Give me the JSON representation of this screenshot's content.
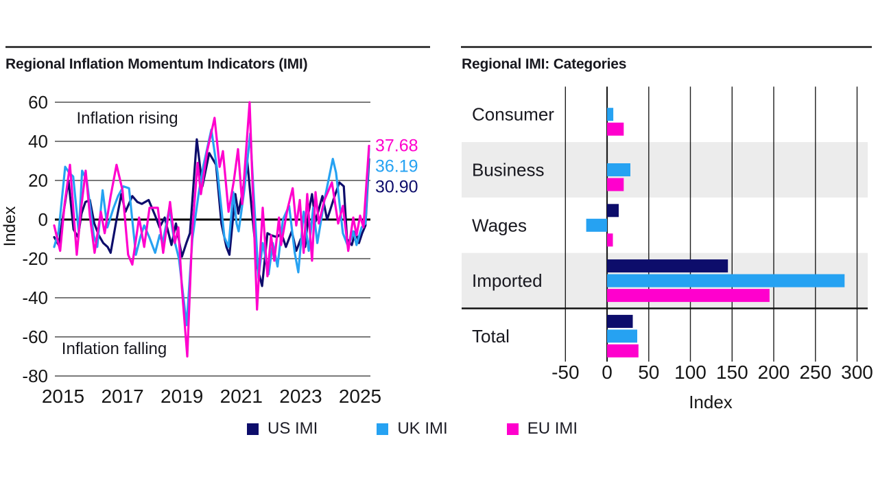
{
  "legend": {
    "items": [
      {
        "label": "US IMI",
        "color": "#0d0d6b"
      },
      {
        "label": "UK IMI",
        "color": "#26a2f2"
      },
      {
        "label": "EU IMI",
        "color": "#ff00cd"
      }
    ]
  },
  "chart_data": [
    {
      "type": "line",
      "title": "Regional Inflation Momentum Indicators (IMI)",
      "ylabel": "Index",
      "xlabel": "",
      "xlim": [
        2014.6,
        2025.5
      ],
      "ylim": [
        -80,
        60
      ],
      "yticks": [
        60,
        40,
        20,
        0,
        -20,
        -40,
        -60,
        -80
      ],
      "xticks": [
        2015,
        2017,
        2019,
        2021,
        2023,
        2025
      ],
      "grid": "horizontal",
      "zero_line": true,
      "legend_position": "bottom",
      "annotations": [
        {
          "text": "Inflation rising",
          "x": 2015.45,
          "y": 52
        },
        {
          "text": "Inflation falling",
          "x": 2014.95,
          "y": -66
        }
      ],
      "series": [
        {
          "name": "US IMI",
          "color": "#0d0d6b",
          "end_label": "30.90",
          "points": [
            [
              2014.7,
              -9
            ],
            [
              2014.85,
              -13
            ],
            [
              2015.0,
              2
            ],
            [
              2015.18,
              20
            ],
            [
              2015.35,
              -5
            ],
            [
              2015.5,
              -9
            ],
            [
              2015.62,
              3
            ],
            [
              2015.75,
              9
            ],
            [
              2015.9,
              10
            ],
            [
              2016.05,
              -2
            ],
            [
              2016.2,
              -8
            ],
            [
              2016.35,
              -12
            ],
            [
              2016.5,
              -14
            ],
            [
              2016.6,
              -17
            ],
            [
              2016.8,
              0
            ],
            [
              2016.96,
              13
            ],
            [
              2017.1,
              4
            ],
            [
              2017.33,
              12
            ],
            [
              2017.5,
              9
            ],
            [
              2017.65,
              8
            ],
            [
              2017.88,
              10
            ],
            [
              2018.1,
              2
            ],
            [
              2018.25,
              -4
            ],
            [
              2018.42,
              1
            ],
            [
              2018.65,
              -13
            ],
            [
              2018.8,
              -2
            ],
            [
              2019.0,
              -19
            ],
            [
              2019.15,
              -12
            ],
            [
              2019.27,
              -7
            ],
            [
              2019.5,
              41
            ],
            [
              2019.69,
              17
            ],
            [
              2019.92,
              34
            ],
            [
              2020.15,
              28
            ],
            [
              2020.33,
              -2
            ],
            [
              2020.5,
              -14
            ],
            [
              2020.6,
              -18
            ],
            [
              2020.8,
              13
            ],
            [
              2020.9,
              3
            ],
            [
              2021.05,
              15
            ],
            [
              2021.2,
              30
            ],
            [
              2021.35,
              5
            ],
            [
              2021.55,
              -25
            ],
            [
              2021.7,
              -34
            ],
            [
              2021.88,
              -7
            ],
            [
              2022.0,
              -8
            ],
            [
              2022.2,
              -9
            ],
            [
              2022.35,
              -7
            ],
            [
              2022.5,
              -14
            ],
            [
              2022.7,
              -6
            ],
            [
              2022.85,
              -16
            ],
            [
              2023.0,
              -10
            ],
            [
              2023.15,
              -14
            ],
            [
              2023.27,
              4
            ],
            [
              2023.38,
              13
            ],
            [
              2023.5,
              -1
            ],
            [
              2023.73,
              12
            ],
            [
              2023.89,
              0
            ],
            [
              2024.1,
              10
            ],
            [
              2024.3,
              19
            ],
            [
              2024.45,
              17
            ],
            [
              2024.56,
              -10
            ],
            [
              2024.72,
              -13
            ],
            [
              2024.84,
              -6
            ],
            [
              2024.96,
              -12
            ],
            [
              2025.07,
              -7
            ],
            [
              2025.18,
              -3
            ],
            [
              2025.3,
              30.9
            ]
          ]
        },
        {
          "name": "UK IMI",
          "color": "#26a2f2",
          "end_label": "36.19",
          "points": [
            [
              2014.7,
              -14
            ],
            [
              2014.85,
              -6
            ],
            [
              2015.07,
              27
            ],
            [
              2015.2,
              24
            ],
            [
              2015.34,
              22
            ],
            [
              2015.53,
              -7
            ],
            [
              2015.64,
              25
            ],
            [
              2015.8,
              20
            ],
            [
              2016.03,
              -8
            ],
            [
              2016.15,
              -14
            ],
            [
              2016.33,
              15
            ],
            [
              2016.49,
              -4
            ],
            [
              2016.7,
              6
            ],
            [
              2016.85,
              12
            ],
            [
              2017.03,
              17
            ],
            [
              2017.22,
              16
            ],
            [
              2017.45,
              -18
            ],
            [
              2017.6,
              -9
            ],
            [
              2017.73,
              -3
            ],
            [
              2017.9,
              -9
            ],
            [
              2018.1,
              -17
            ],
            [
              2018.25,
              -8
            ],
            [
              2018.35,
              -12
            ],
            [
              2018.58,
              6
            ],
            [
              2018.72,
              -9
            ],
            [
              2018.9,
              -20
            ],
            [
              2019.16,
              -54
            ],
            [
              2019.35,
              -10
            ],
            [
              2019.57,
              14
            ],
            [
              2019.73,
              28
            ],
            [
              2019.99,
              46
            ],
            [
              2020.2,
              24
            ],
            [
              2020.43,
              -9
            ],
            [
              2020.57,
              -14
            ],
            [
              2020.73,
              14
            ],
            [
              2020.84,
              -2
            ],
            [
              2020.91,
              -6
            ],
            [
              2021.1,
              15
            ],
            [
              2021.3,
              44
            ],
            [
              2021.58,
              -30
            ],
            [
              2021.72,
              -12
            ],
            [
              2021.92,
              -28
            ],
            [
              2022.06,
              -12
            ],
            [
              2022.22,
              -24
            ],
            [
              2022.4,
              0
            ],
            [
              2022.61,
              7
            ],
            [
              2022.8,
              -17
            ],
            [
              2022.92,
              -27
            ],
            [
              2023.1,
              4
            ],
            [
              2023.27,
              -16
            ],
            [
              2023.42,
              6
            ],
            [
              2023.56,
              -12
            ],
            [
              2023.8,
              10
            ],
            [
              2024.08,
              31
            ],
            [
              2024.19,
              24
            ],
            [
              2024.42,
              -7
            ],
            [
              2024.6,
              -14
            ],
            [
              2024.77,
              -6
            ],
            [
              2024.88,
              -13
            ],
            [
              2025.05,
              -4
            ],
            [
              2025.18,
              -2
            ],
            [
              2025.3,
              36.19
            ]
          ]
        },
        {
          "name": "EU IMI",
          "color": "#ff00cd",
          "end_label": "37.68",
          "points": [
            [
              2014.7,
              -3
            ],
            [
              2014.9,
              -16
            ],
            [
              2015.05,
              8
            ],
            [
              2015.23,
              28
            ],
            [
              2015.46,
              -18
            ],
            [
              2015.6,
              5
            ],
            [
              2015.76,
              25
            ],
            [
              2015.9,
              2
            ],
            [
              2016.06,
              -17
            ],
            [
              2016.27,
              4
            ],
            [
              2016.4,
              -7
            ],
            [
              2016.6,
              12
            ],
            [
              2016.8,
              28
            ],
            [
              2017.0,
              15
            ],
            [
              2017.19,
              -18
            ],
            [
              2017.33,
              -23
            ],
            [
              2017.56,
              1
            ],
            [
              2017.73,
              -14
            ],
            [
              2017.91,
              6
            ],
            [
              2018.07,
              6
            ],
            [
              2018.19,
              6
            ],
            [
              2018.37,
              -17
            ],
            [
              2018.6,
              9
            ],
            [
              2018.76,
              -12
            ],
            [
              2018.88,
              -4
            ],
            [
              2019.0,
              -35
            ],
            [
              2019.18,
              -70
            ],
            [
              2019.35,
              -5
            ],
            [
              2019.53,
              29
            ],
            [
              2019.64,
              13
            ],
            [
              2019.85,
              35
            ],
            [
              2020.1,
              52
            ],
            [
              2020.27,
              27
            ],
            [
              2020.38,
              35
            ],
            [
              2020.57,
              4
            ],
            [
              2020.75,
              20
            ],
            [
              2020.89,
              36
            ],
            [
              2021.03,
              8
            ],
            [
              2021.28,
              60
            ],
            [
              2021.53,
              -46
            ],
            [
              2021.72,
              6
            ],
            [
              2021.88,
              -29
            ],
            [
              2022.0,
              -8
            ],
            [
              2022.11,
              -21
            ],
            [
              2022.27,
              1
            ],
            [
              2022.34,
              -13
            ],
            [
              2022.55,
              5
            ],
            [
              2022.73,
              16
            ],
            [
              2022.85,
              -3
            ],
            [
              2022.97,
              10
            ],
            [
              2023.1,
              -17
            ],
            [
              2023.22,
              13
            ],
            [
              2023.38,
              -21
            ],
            [
              2023.5,
              14
            ],
            [
              2023.61,
              -2
            ],
            [
              2023.8,
              10
            ],
            [
              2024.05,
              19
            ],
            [
              2024.26,
              -2
            ],
            [
              2024.42,
              7
            ],
            [
              2024.6,
              -16
            ],
            [
              2024.77,
              1
            ],
            [
              2024.88,
              -8
            ],
            [
              2025.0,
              2
            ],
            [
              2025.11,
              -4
            ],
            [
              2025.3,
              37.68
            ]
          ]
        }
      ]
    },
    {
      "type": "bar",
      "title": "Regional IMI: Categories",
      "xlabel": "Index",
      "orientation": "horizontal",
      "categories": [
        "Consumer",
        "Business",
        "Wages",
        "Imported",
        "Total"
      ],
      "xticks": [
        -50,
        0,
        50,
        100,
        150,
        200,
        250,
        300
      ],
      "xlim": [
        -50,
        300
      ],
      "grid": "vertical",
      "shaded_categories": [
        "Business",
        "Imported"
      ],
      "separator_before": "Total",
      "series": [
        {
          "name": "US IMI",
          "color": "#0d0d6b",
          "values": [
            0,
            0,
            14,
            145,
            30.9
          ]
        },
        {
          "name": "UK IMI",
          "color": "#26a2f2",
          "values": [
            7.5,
            28,
            -25,
            285,
            36.19
          ]
        },
        {
          "name": "EU IMI",
          "color": "#ff00cd",
          "values": [
            20,
            20,
            7,
            195,
            37.68
          ]
        }
      ]
    }
  ]
}
